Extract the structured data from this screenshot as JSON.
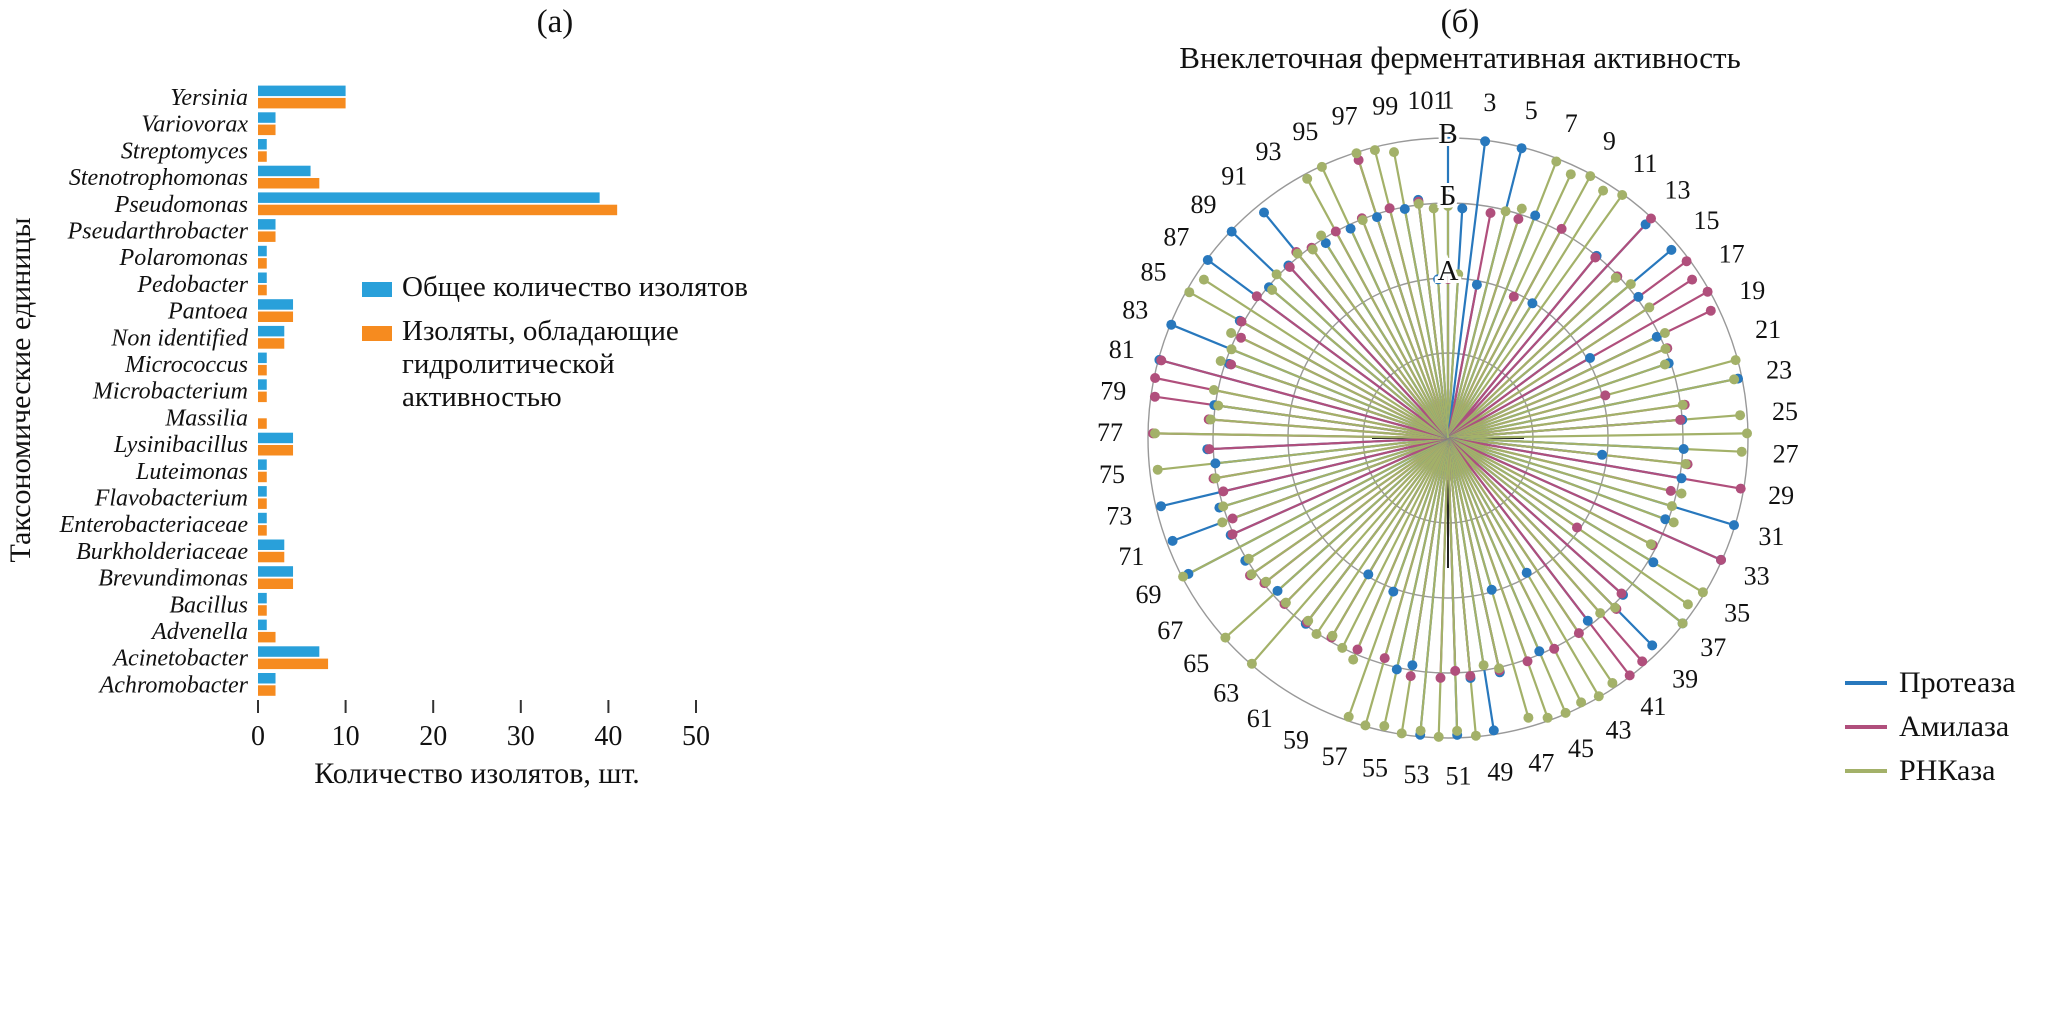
{
  "panel_a": {
    "title": "(а)",
    "legend": [
      {
        "lines": [
          "Общее количество изолятов"
        ]
      },
      {
        "lines": [
          "Изоляты, обладающие",
          "гидролитической",
          "активностью"
        ]
      }
    ]
  },
  "panel_b": {
    "title": "(б)",
    "subtitle": "Внеклеточная ферментативная активность"
  },
  "chart_data": [
    {
      "type": "bar",
      "orientation": "horizontal",
      "title": "(а)",
      "xlabel": "Количество изолятов, шт.",
      "ylabel": "Таксономические единицы",
      "xlim": [
        0,
        52
      ],
      "xticks": [
        0,
        10,
        20,
        30,
        40,
        50
      ],
      "grid": false,
      "categories": [
        "Yersinia",
        "Variovorax",
        "Streptomyces",
        "Stenotrophomonas",
        "Pseudomonas",
        "Pseudarthrobacter",
        "Polaromonas",
        "Pedobacter",
        "Pantoea",
        "Non identified",
        "Micrococcus",
        "Microbacterium",
        "Massilia",
        "Lysinibacillus",
        "Luteimonas",
        "Flavobacterium",
        "Enterobacteriaceae",
        "Burkholderiaceae",
        "Brevundimonas",
        "Bacillus",
        "Advenella",
        "Acinetobacter",
        "Achromobacter"
      ],
      "series": [
        {
          "name": "Общее количество изолятов",
          "color": "#29a0da",
          "values": [
            10,
            2,
            1,
            6,
            39,
            2,
            1,
            1,
            4,
            3,
            1,
            1,
            0,
            4,
            1,
            1,
            1,
            3,
            4,
            1,
            1,
            7,
            2
          ]
        },
        {
          "name": "Изоляты, обладающие гидролитической активностью",
          "color": "#f68b1f",
          "values": [
            10,
            2,
            1,
            7,
            41,
            2,
            1,
            1,
            4,
            3,
            1,
            1,
            1,
            4,
            1,
            1,
            1,
            3,
            4,
            1,
            2,
            8,
            2
          ]
        }
      ]
    },
    {
      "type": "radial",
      "title": "Внеклеточная ферментативная активность",
      "positions": 101,
      "position_labels": "odd numbers 1..101 clockwise from top",
      "ring_labels": [
        "А",
        "Б",
        "В"
      ],
      "level_meaning": "0=нет активности, 1=уровень А, 2=уровень Б, 3=уровень В",
      "series": [
        {
          "name": "Протеаза",
          "color": "#2878bd",
          "levels": "32313020010230320120203020212032302032302010201232303220100102002002323230220020323020323230202020221"
        },
        {
          "name": "Амилаза",
          "color": "#b04f7c",
          "levels": "10020201200232033332010220023200320102233202020202220202020202020220022022023233320220200222020232020"
        },
        {
          "name": "РНКаза",
          "color": "#a3b169",
          "levels": "21002233333002202022233233320222023330220333333223333333322222323222302202303222022233022022233233322"
        }
      ]
    }
  ]
}
